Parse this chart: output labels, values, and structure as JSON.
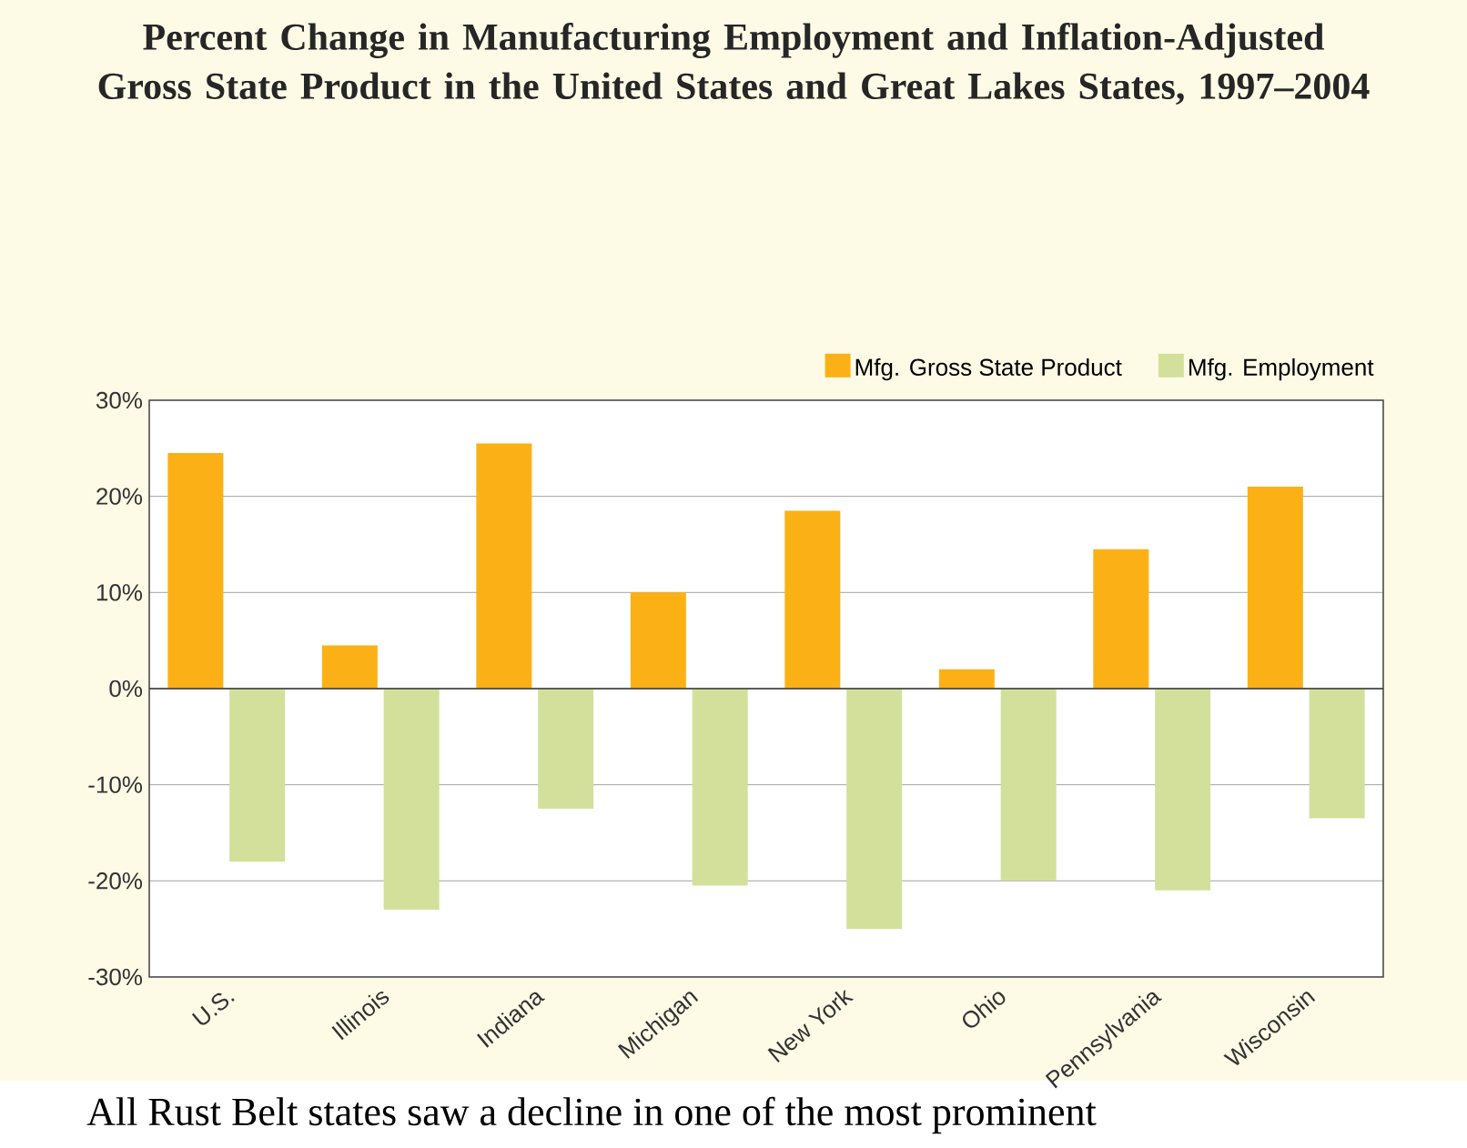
{
  "chart_data": {
    "type": "bar",
    "title": "Percent Change in Manufacturing Employment and Inflation-Adjusted Gross State Product in the United States and Great Lakes States, 1997–2004",
    "categories": [
      "U.S.",
      "Illinois",
      "Indiana",
      "Michigan",
      "New York",
      "Ohio",
      "Pennsylvania",
      "Wisconsin"
    ],
    "series": [
      {
        "name": "Mfg. Gross State Product",
        "color": "#fbb116",
        "values": [
          24.5,
          4.5,
          25.5,
          10,
          18.5,
          2,
          14.5,
          21
        ]
      },
      {
        "name": "Mfg. Employment",
        "color": "#d3e09b",
        "values": [
          -18,
          -23,
          -12.5,
          -20.5,
          -25,
          -20,
          -21,
          -13.5
        ]
      }
    ],
    "ylim": [
      -30,
      30
    ],
    "yticks": [
      {
        "value": -30,
        "label": "-30%"
      },
      {
        "value": -20,
        "label": "-20%"
      },
      {
        "value": -10,
        "label": "-10%"
      },
      {
        "value": 0,
        "label": "0%"
      },
      {
        "value": 10,
        "label": "10%"
      },
      {
        "value": 20,
        "label": "20%"
      },
      {
        "value": 30,
        "label": "30%"
      }
    ],
    "grid": "y",
    "legend": "top right",
    "annotations": [
      "All Rust Belt states saw a decline in one of the most prominent"
    ]
  }
}
